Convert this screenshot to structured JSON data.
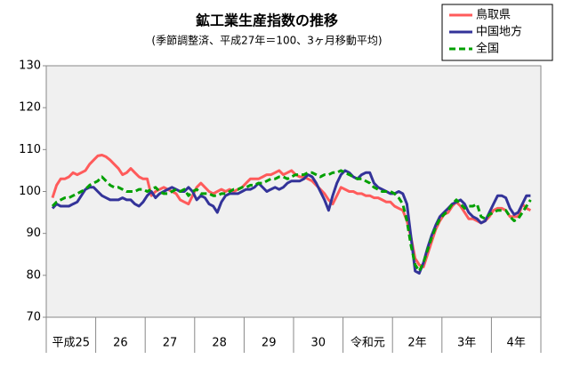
{
  "chart_data": {
    "type": "line",
    "title": "鉱工業生産指数の推移",
    "subtitle": "(季節調整済、平成27年＝100、3ヶ月移動平均)",
    "categories": [
      null,
      null,
      null,
      null,
      null,
      null,
      "平成25",
      null,
      null,
      null,
      null,
      null,
      null,
      null,
      null,
      null,
      null,
      null,
      "26",
      null,
      null,
      null,
      null,
      null,
      null,
      null,
      null,
      null,
      null,
      null,
      "27",
      null,
      null,
      null,
      null,
      null,
      null,
      null,
      null,
      null,
      null,
      null,
      "28",
      null,
      null,
      null,
      null,
      null,
      null,
      null,
      null,
      null,
      null,
      null,
      "29",
      null,
      null,
      null,
      null,
      null,
      null,
      null,
      null,
      null,
      null,
      null,
      "30",
      null,
      null,
      null,
      null,
      null,
      null,
      null,
      null,
      null,
      null,
      null,
      "令和元",
      null,
      null,
      null,
      null,
      null,
      null,
      null,
      null,
      null,
      null,
      null,
      "2年",
      null,
      null,
      null,
      null,
      null,
      null,
      null,
      null,
      null,
      null,
      null,
      "3年",
      null,
      null,
      null,
      null,
      null,
      null,
      null,
      null,
      null,
      null,
      null,
      "4年",
      null,
      null,
      null,
      null,
      null
    ],
    "series": [
      {
        "name": "鳥取県",
        "color": "#ff5b5b",
        "values": [
          null,
          98.5,
          101.5,
          103,
          103,
          103.5,
          104.5,
          104,
          104.5,
          105,
          106.5,
          107.5,
          108.5,
          108.7,
          108.3,
          107.5,
          106.5,
          105.5,
          104,
          104.5,
          105.5,
          104.5,
          103.5,
          103,
          103,
          99,
          100,
          100.5,
          101,
          100.5,
          100,
          99.5,
          98,
          97.5,
          97,
          99,
          101,
          102,
          101,
          100,
          99.5,
          100,
          100.5,
          100,
          100.5,
          100,
          100.5,
          101,
          102,
          103,
          103,
          103,
          103.5,
          104,
          104,
          104.5,
          105,
          104,
          104.5,
          105,
          104,
          103.5,
          103.5,
          103,
          102.5,
          101.5,
          100.5,
          99.5,
          98,
          97,
          99,
          101,
          100.5,
          100,
          100,
          99.5,
          99.5,
          99,
          99,
          98.5,
          98.5,
          98,
          97.5,
          97.5,
          96.5,
          96,
          95.5,
          93,
          89,
          84,
          82.5,
          82,
          85,
          88,
          91,
          93,
          94.5,
          95,
          96.5,
          97.5,
          96.5,
          95,
          93.5,
          93.5,
          93,
          92.5,
          93,
          94,
          95.5,
          96,
          96,
          95.5,
          94,
          94,
          94,
          97,
          96,
          95.5,
          null,
          null
        ]
      },
      {
        "name": "中国地方",
        "color": "#333399",
        "values": [
          null,
          96,
          97,
          96.5,
          96.5,
          96.5,
          97,
          97.5,
          99,
          100.5,
          101,
          101,
          100,
          99,
          98.5,
          98,
          98,
          98,
          98.5,
          98,
          98,
          97,
          96.5,
          97.5,
          99,
          100,
          98.5,
          99.5,
          100,
          100.5,
          101,
          100.5,
          100,
          100,
          101,
          100,
          98,
          99,
          98.5,
          97,
          96.5,
          95,
          97.5,
          99,
          99.5,
          99.5,
          99.5,
          100,
          100.5,
          100.5,
          101,
          102,
          101,
          100,
          100.5,
          101,
          100.5,
          101,
          102,
          102.5,
          102.5,
          102.5,
          103,
          104,
          103.5,
          102,
          100,
          98,
          95.5,
          99,
          102,
          104,
          105,
          104.5,
          103.5,
          103,
          104,
          104.5,
          104.5,
          102,
          101,
          100.5,
          100,
          99.5,
          99.5,
          100,
          99.5,
          97,
          89,
          81,
          80.5,
          83,
          86.5,
          89.5,
          92,
          94,
          95,
          96,
          97,
          97.5,
          98,
          97,
          95,
          94,
          93.5,
          92.5,
          93,
          95,
          97,
          99,
          99,
          98.5,
          96,
          94.5,
          95,
          97,
          99,
          99,
          null,
          null
        ]
      },
      {
        "name": "全国",
        "color": "#00a000",
        "dashed": true,
        "values": [
          null,
          96.5,
          97.5,
          98,
          98.5,
          98.5,
          99,
          99.5,
          100,
          100.5,
          101.5,
          102,
          102.5,
          103.5,
          102.5,
          101.5,
          101,
          101,
          100.5,
          100,
          100,
          100,
          100.5,
          100.5,
          100,
          100.5,
          101,
          100,
          99.5,
          99.5,
          100,
          100.5,
          100,
          100.5,
          99,
          100,
          100.5,
          99.5,
          99.5,
          99.5,
          99,
          99,
          99.5,
          99.5,
          100,
          100.5,
          100.5,
          101,
          101,
          101.5,
          101.5,
          102,
          102,
          102.5,
          103,
          103,
          103.5,
          103.5,
          103,
          103.5,
          104,
          104,
          104,
          104.5,
          104.5,
          104,
          103.5,
          104,
          104,
          104.5,
          104.5,
          105,
          104.5,
          104,
          103.5,
          103,
          103,
          102.5,
          102,
          101,
          100.5,
          100,
          100,
          100,
          99.5,
          98.5,
          97,
          93,
          87,
          82.5,
          81,
          83,
          86,
          89,
          91.5,
          93.5,
          94.5,
          95.5,
          97,
          98,
          97,
          96,
          96.5,
          96.5,
          97,
          94,
          93.5,
          94.5,
          95,
          95.5,
          95.5,
          95.5,
          94,
          93,
          93.5,
          95,
          96.5,
          98,
          null,
          null
        ]
      }
    ],
    "ylim": [
      70,
      130
    ],
    "yticks": [
      70,
      80,
      90,
      100,
      110,
      120,
      130
    ],
    "grid": false,
    "legend": "top-right"
  }
}
